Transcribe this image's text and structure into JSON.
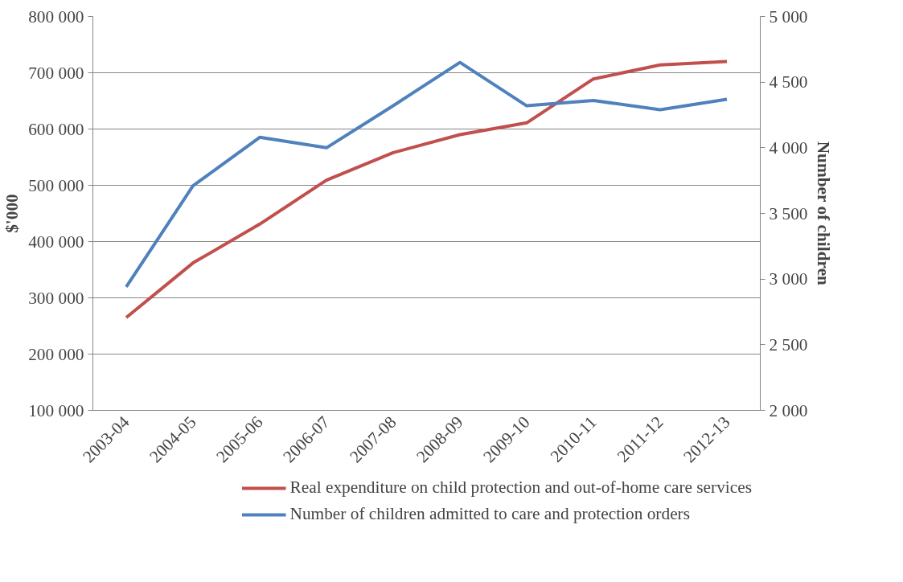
{
  "chart_data": {
    "type": "line",
    "categories": [
      "2003-04",
      "2004-05",
      "2005-06",
      "2006-07",
      "2007-08",
      "2008-09",
      "2009-10",
      "2010-11",
      "2011-12",
      "2012-13"
    ],
    "series": [
      {
        "name": "Real expenditure on child protection and out-of-home care services",
        "color": "#c0504d",
        "values": [
          265000,
          362000,
          431000,
          509000,
          558000,
          590000,
          611000,
          689000,
          714000,
          720000
        ]
      },
      {
        "name": "Number of children admitted to care and protection orders",
        "color": "#4f81bd",
        "axis": "y2",
        "values": [
          2940,
          3710,
          4080,
          4000,
          4320,
          4650,
          4320,
          4360,
          4290,
          4370
        ]
      }
    ],
    "ylabel": "$'000",
    "y2label": "Number of children",
    "ylim": [
      100000,
      800000
    ],
    "yticks": [
      {
        "value": 100000,
        "label": "100 000"
      },
      {
        "value": 200000,
        "label": "200 000"
      },
      {
        "value": 300000,
        "label": "300 000"
      },
      {
        "value": 400000,
        "label": "400 000"
      },
      {
        "value": 500000,
        "label": "500 000"
      },
      {
        "value": 600000,
        "label": "600 000"
      },
      {
        "value": 700000,
        "label": "700 000"
      },
      {
        "value": 800000,
        "label": "800 000"
      }
    ],
    "y2lim": [
      2000,
      5000
    ],
    "y2ticks": [
      {
        "value": 2000,
        "label": "2 000"
      },
      {
        "value": 2500,
        "label": "2 500"
      },
      {
        "value": 3000,
        "label": "3 000"
      },
      {
        "value": 3500,
        "label": "3 500"
      },
      {
        "value": 4000,
        "label": "4 000"
      },
      {
        "value": 4500,
        "label": "4 500"
      },
      {
        "value": 5000,
        "label": "5 000"
      }
    ],
    "grid": "y",
    "legend": "bottom",
    "marker": "none",
    "line_style": "solid"
  }
}
